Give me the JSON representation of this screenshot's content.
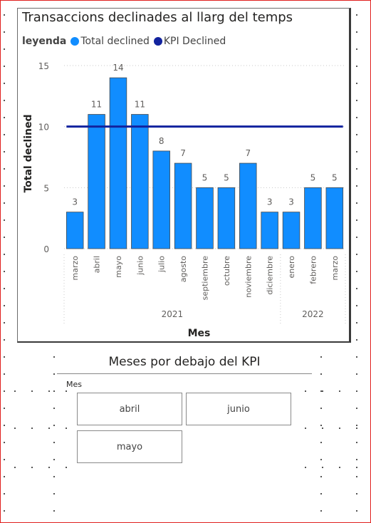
{
  "chart": {
    "title": "Transaccions declinades al llarg del temps",
    "legend_title": "leyenda",
    "legend_items": [
      {
        "label": "Total declined",
        "color": "#118dff"
      },
      {
        "label": "KPI Declined",
        "color": "#12239e"
      }
    ]
  },
  "chart_data": {
    "type": "bar",
    "title": "Transaccions declinades al llarg del temps",
    "xlabel": "Mes",
    "ylabel": "Total declined",
    "ylim": [
      0,
      15
    ],
    "yticks": [
      0,
      5,
      10,
      15
    ],
    "grid": true,
    "legend_position": "top-left",
    "categories": [
      "marzo",
      "abril",
      "mayo",
      "junio",
      "julio",
      "agosto",
      "septiembre",
      "octubre",
      "noviembre",
      "diciembre",
      "enero",
      "febrero",
      "marzo"
    ],
    "groups": [
      {
        "label": "2021",
        "count": 10
      },
      {
        "label": "2022",
        "count": 3
      }
    ],
    "series": [
      {
        "name": "Total declined",
        "type": "bar",
        "color": "#118dff",
        "values": [
          3,
          11,
          14,
          11,
          8,
          7,
          5,
          5,
          7,
          3,
          3,
          5,
          5
        ]
      },
      {
        "name": "KPI Declined",
        "type": "line",
        "color": "#12239e",
        "values": [
          10,
          10,
          10,
          10,
          10,
          10,
          10,
          10,
          10,
          10,
          10,
          10,
          10
        ]
      }
    ]
  },
  "slicer": {
    "title": "Meses por debajo del KPI",
    "field_label": "Mes",
    "options": [
      "abril",
      "junio",
      "mayo"
    ]
  }
}
